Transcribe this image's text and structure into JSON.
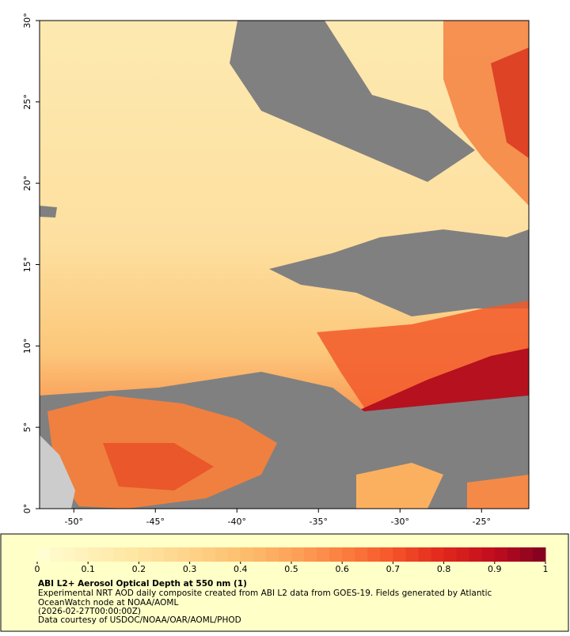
{
  "map": {
    "xlim": [
      -52.1,
      -22.1
    ],
    "ylim": [
      0,
      30
    ],
    "xticks": [
      {
        "value": -50,
        "label": "-50°"
      },
      {
        "value": -45,
        "label": "-45°"
      },
      {
        "value": -40,
        "label": "-40°"
      },
      {
        "value": -35,
        "label": "-35°"
      },
      {
        "value": -30,
        "label": "-30°"
      },
      {
        "value": -25,
        "label": "-25°"
      }
    ],
    "yticks": [
      {
        "value": 0,
        "label": "0°"
      },
      {
        "value": 5,
        "label": "5°"
      },
      {
        "value": 10,
        "label": "10°"
      },
      {
        "value": 15,
        "label": "15°"
      },
      {
        "value": 20,
        "label": "20°"
      },
      {
        "value": 25,
        "label": "25°"
      },
      {
        "value": 30,
        "label": "30°"
      }
    ]
  },
  "colorbar": {
    "lim": [
      0,
      1
    ],
    "ticks": [
      0,
      0.1,
      0.2,
      0.3,
      0.4,
      0.5,
      0.6,
      0.7,
      0.8,
      0.9,
      1
    ],
    "colors": [
      "#ffffd4",
      "#fff0b8",
      "#fee4a0",
      "#fed38a",
      "#fdbf6f",
      "#fda35a",
      "#fc8040",
      "#f5542a",
      "#e0261c",
      "#c00d1e",
      "#7f0020"
    ]
  },
  "caption": {
    "title": "ABI L2+ Aerosol Optical Depth at 550 nm (1)",
    "line1": "Experimental NRT AOD daily composite created from ABI L2 data from GOES-19. Fields generated by Atlantic",
    "line2": "OceanWatch node at NOAA/AOML",
    "line3": "(2026-02-27T00:00:00Z)",
    "line4": "Data courtesy of USDOC/NOAA/OAR/AOML/PHOD"
  }
}
